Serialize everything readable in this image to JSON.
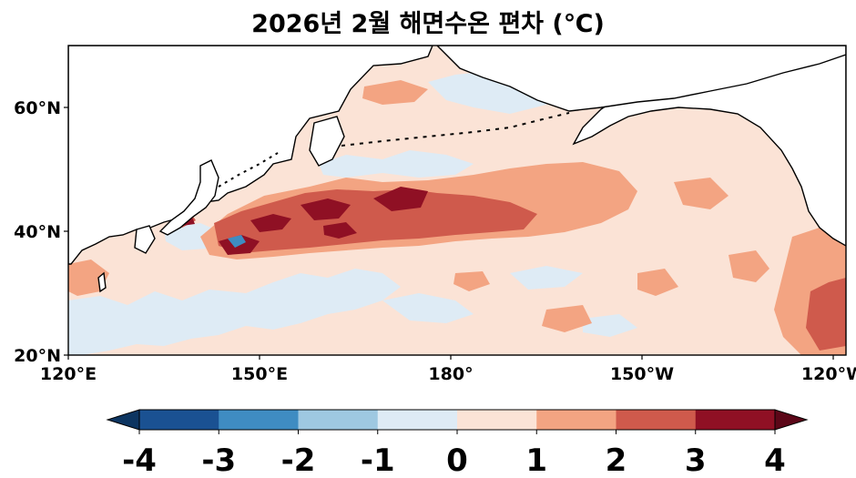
{
  "title": "2026년 2월 해면수온 편차 (℃)",
  "x_ticks": [
    "120°E",
    "150°E",
    "180°",
    "150°W",
    "120°W"
  ],
  "y_ticks": [
    "60°N",
    "40°N",
    "20°N"
  ],
  "map_extent": {
    "lon_min": 120,
    "lon_max": 242,
    "lat_min": 20,
    "lat_max": 70
  },
  "colorbar": {
    "ticks": [
      "-4",
      "-3",
      "-2",
      "-1",
      "0",
      "1",
      "2",
      "3",
      "4"
    ],
    "colors": [
      "#1a5192",
      "#3f8cc2",
      "#9ec8e1",
      "#deebf5",
      "#fbe3d6",
      "#f3a482",
      "#cf5a4c",
      "#8f1024"
    ],
    "under_color": "#0d3561",
    "over_color": "#5c0718"
  }
}
